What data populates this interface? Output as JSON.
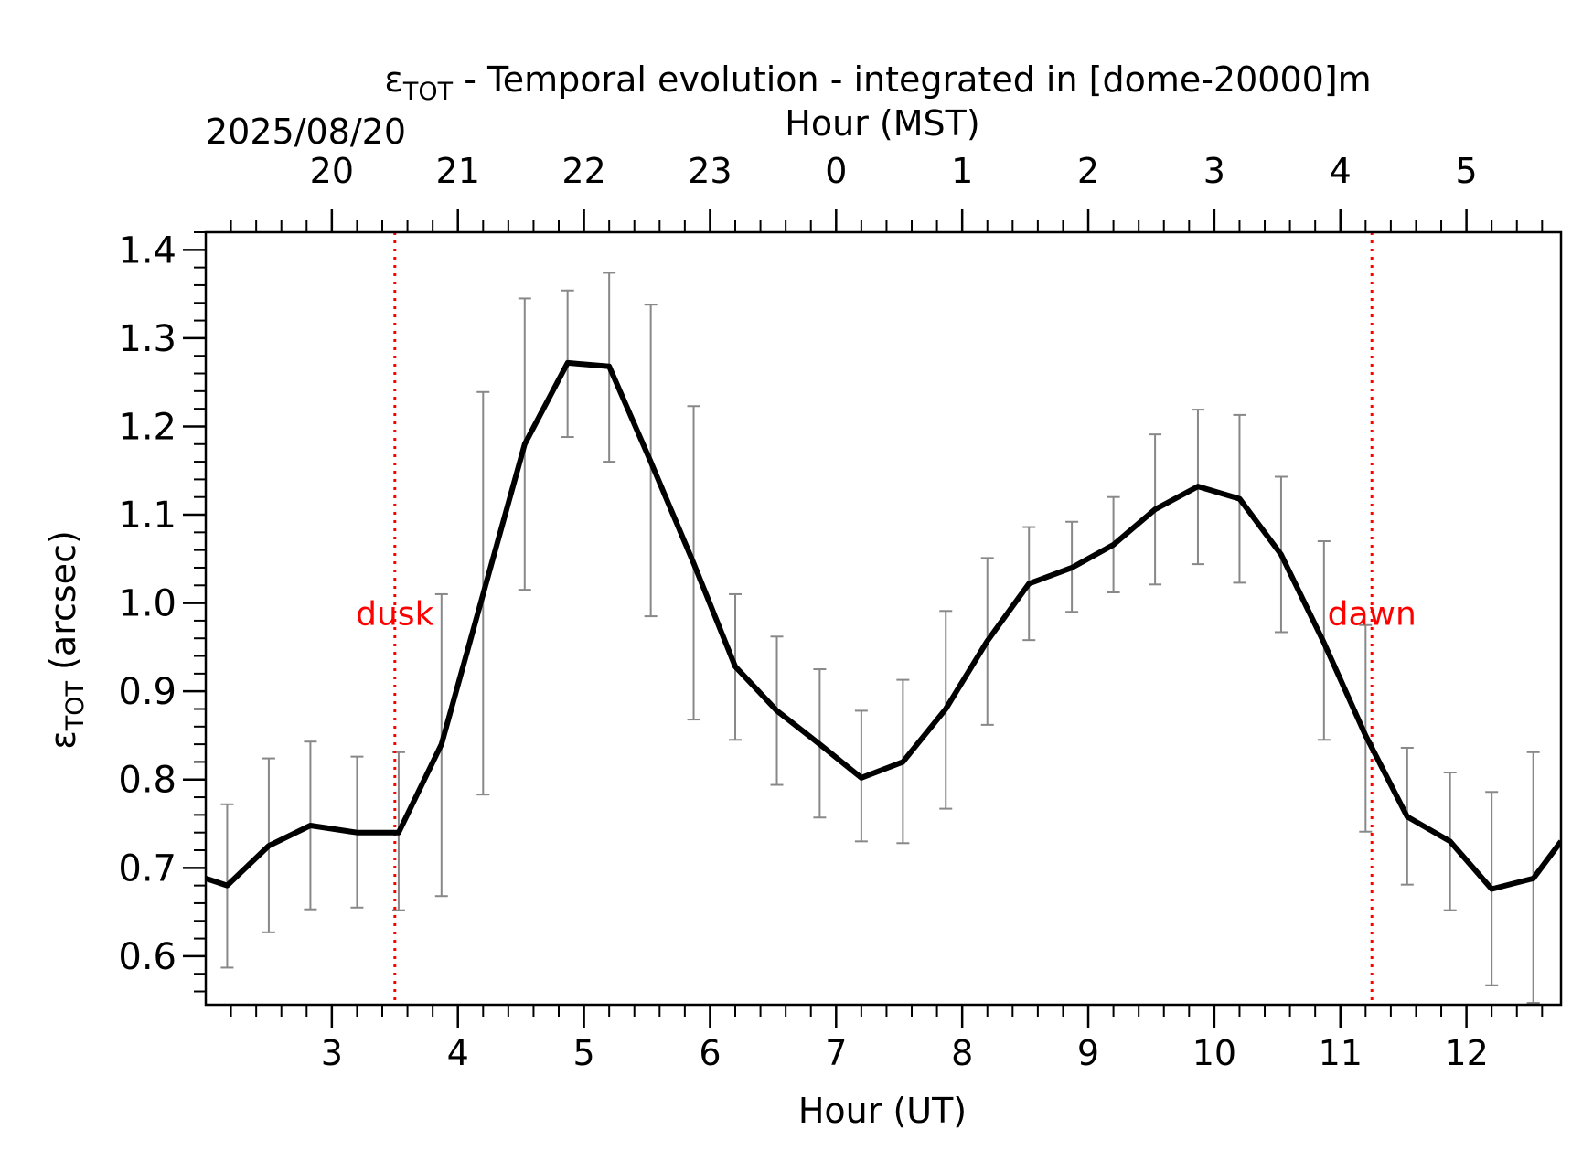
{
  "chart_data": {
    "type": "line",
    "title": {
      "symbol": "ε",
      "subscript": "TOT",
      "text": " - Temporal evolution - integrated in [dome-20000]m"
    },
    "date_label": "2025/08/20",
    "xlabel": "Hour (UT)",
    "xlabel_top": "Hour (MST)",
    "ylabel": {
      "symbol": "ε",
      "subscript": "TOT",
      "text": " (arcsec)"
    },
    "xlim": [
      2.0,
      12.75
    ],
    "ylim": [
      0.545,
      1.42
    ],
    "x_ticks": [
      3,
      4,
      5,
      6,
      7,
      8,
      9,
      10,
      11,
      12
    ],
    "x_tick_labels": [
      "3",
      "4",
      "5",
      "6",
      "7",
      "8",
      "9",
      "10",
      "11",
      "12"
    ],
    "x_top_ticks": [
      3,
      4,
      5,
      6,
      7,
      8,
      9,
      10,
      11,
      12
    ],
    "x_top_tick_labels": [
      "20",
      "21",
      "22",
      "23",
      "0",
      "1",
      "2",
      "3",
      "4",
      "5"
    ],
    "y_ticks": [
      0.6,
      0.7,
      0.8,
      0.9,
      1.0,
      1.1,
      1.2,
      1.3,
      1.4
    ],
    "y_tick_labels": [
      "0.6",
      "0.7",
      "0.8",
      "0.9",
      "1.0",
      "1.1",
      "1.2",
      "1.3",
      "1.4"
    ],
    "grid": false,
    "legend": "none",
    "series": [
      {
        "color": "#000000",
        "x": [
          2.0,
          2.17,
          2.5,
          2.83,
          3.2,
          3.53,
          3.87,
          4.2,
          4.53,
          4.87,
          5.2,
          5.53,
          5.87,
          6.2,
          6.53,
          6.87,
          7.2,
          7.53,
          7.87,
          8.2,
          8.53,
          8.87,
          9.2,
          9.53,
          9.87,
          10.2,
          10.53,
          10.87,
          11.2,
          11.53,
          11.87,
          12.2,
          12.53,
          12.75
        ],
        "y": [
          0.688,
          0.68,
          0.725,
          0.748,
          0.74,
          0.74,
          0.84,
          1.01,
          1.18,
          1.272,
          1.268,
          1.16,
          1.045,
          0.928,
          0.878,
          0.84,
          0.802,
          0.82,
          0.88,
          0.957,
          1.022,
          1.04,
          1.066,
          1.106,
          1.132,
          1.118,
          1.055,
          0.955,
          0.85,
          0.758,
          0.73,
          0.676,
          0.688,
          0.73
        ]
      }
    ],
    "error_bars": {
      "color": "#888888",
      "x": [
        2.17,
        2.5,
        2.83,
        3.2,
        3.53,
        3.87,
        4.2,
        4.53,
        4.87,
        5.2,
        5.53,
        5.87,
        6.2,
        6.53,
        6.87,
        7.2,
        7.53,
        7.87,
        8.2,
        8.53,
        8.87,
        9.2,
        9.53,
        9.87,
        10.2,
        10.53,
        10.87,
        11.2,
        11.53,
        11.87,
        12.2,
        12.53
      ],
      "low": [
        0.587,
        0.627,
        0.653,
        0.655,
        0.652,
        0.668,
        0.783,
        1.015,
        1.188,
        1.16,
        0.985,
        0.868,
        0.845,
        0.794,
        0.757,
        0.73,
        0.728,
        0.767,
        0.862,
        0.958,
        0.99,
        1.012,
        1.021,
        1.044,
        1.023,
        0.967,
        0.845,
        0.741,
        0.681,
        0.652,
        0.567,
        0.547
      ],
      "high": [
        0.772,
        0.824,
        0.843,
        0.826,
        0.831,
        1.01,
        1.239,
        1.345,
        1.354,
        1.374,
        1.338,
        1.223,
        1.01,
        0.962,
        0.925,
        0.878,
        0.913,
        0.991,
        1.051,
        1.086,
        1.092,
        1.12,
        1.191,
        1.219,
        1.213,
        1.143,
        1.07,
        0.975,
        0.836,
        0.808,
        0.786,
        0.831
      ]
    },
    "vlines": [
      {
        "x": 3.5,
        "label": "dusk",
        "color": "#ff0000"
      },
      {
        "x": 11.25,
        "label": "dawn",
        "color": "#ff0000"
      }
    ]
  }
}
